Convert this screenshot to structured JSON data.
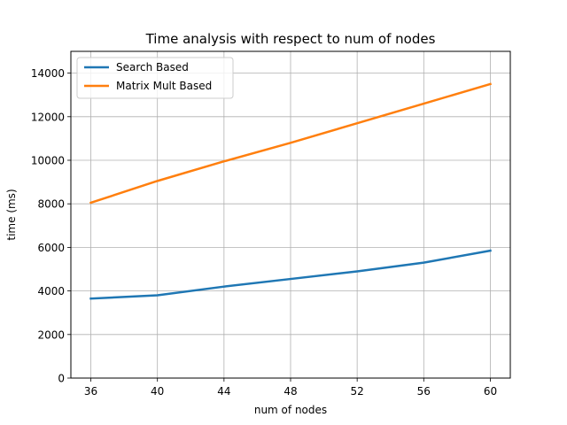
{
  "chart_data": {
    "type": "line",
    "title": "Time analysis with respect to num of nodes",
    "xlabel": "num of nodes",
    "ylabel": "time (ms)",
    "x": [
      36,
      40,
      44,
      48,
      52,
      56,
      60
    ],
    "xticks": [
      36,
      40,
      44,
      48,
      52,
      56,
      60
    ],
    "xlim": [
      34.8,
      61.2
    ],
    "ylim": [
      0,
      15000
    ],
    "yticks": [
      0,
      2000,
      4000,
      6000,
      8000,
      10000,
      12000,
      14000
    ],
    "grid": true,
    "legend": "top-left",
    "series": [
      {
        "name": "Search Based",
        "color": "#1f77b4",
        "values": [
          3650,
          3800,
          4200,
          4550,
          4900,
          5300,
          5850
        ]
      },
      {
        "name": "Matrix Mult Based",
        "color": "#ff7f0e",
        "values": [
          8050,
          9050,
          9950,
          10800,
          11700,
          12600,
          13500
        ]
      }
    ]
  }
}
